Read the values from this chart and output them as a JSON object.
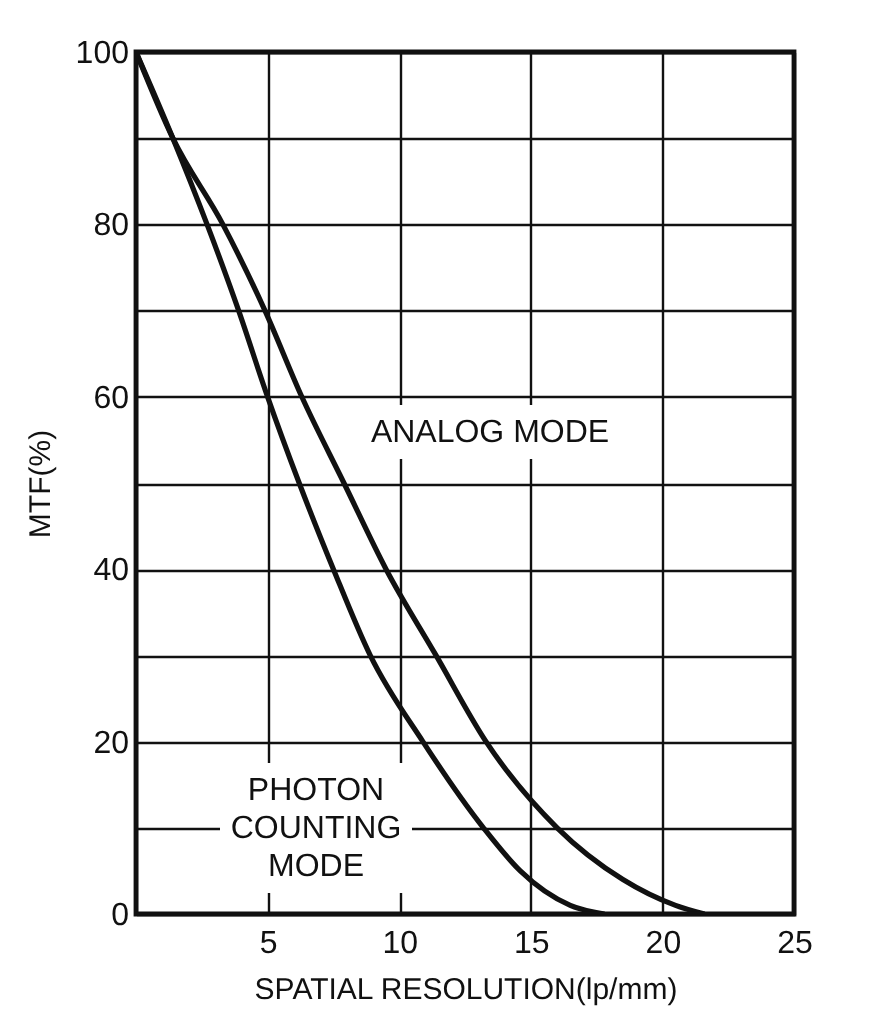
{
  "chart_data": {
    "type": "line",
    "xlabel": "SPATIAL RESOLUTION(lp/mm)",
    "ylabel": "MTF(%)",
    "xlim": [
      0,
      25
    ],
    "xticks": [
      {
        "value": 0,
        "label": null
      },
      5,
      10,
      15,
      20,
      25
    ],
    "ylim": [
      0,
      100
    ],
    "yticks": [
      0,
      {
        "value": 10,
        "label": null
      },
      20,
      {
        "value": 30,
        "label": null
      },
      40,
      {
        "value": 50,
        "label": null
      },
      60,
      {
        "value": 70,
        "label": null
      },
      80,
      {
        "value": 90,
        "label": null
      },
      100
    ],
    "grid": true,
    "legend": false,
    "marker": "none",
    "line_style": "solid",
    "series": [
      {
        "color": "#111111",
        "x": [
          0,
          1.4,
          3.3,
          4.9,
          6.3,
          7.9,
          9.5,
          11.4,
          13.3,
          16.0,
          18.5,
          20.5,
          21.6
        ],
        "values": [
          100,
          90,
          80,
          70,
          60,
          50,
          40,
          30,
          20,
          10,
          4,
          1,
          0
        ]
      },
      {
        "color": "#111111",
        "x": [
          0,
          1.4,
          2.7,
          3.9,
          5.0,
          6.2,
          7.5,
          8.9,
          10.9,
          13.2,
          14.6,
          16.5,
          17.8
        ],
        "values": [
          100,
          90,
          80,
          70,
          60,
          50,
          40,
          30,
          20,
          10,
          5,
          1,
          0
        ]
      }
    ],
    "annotations": [
      "ANALOG MODE",
      "PHOTON\nCOUNTING\nMODE"
    ]
  }
}
